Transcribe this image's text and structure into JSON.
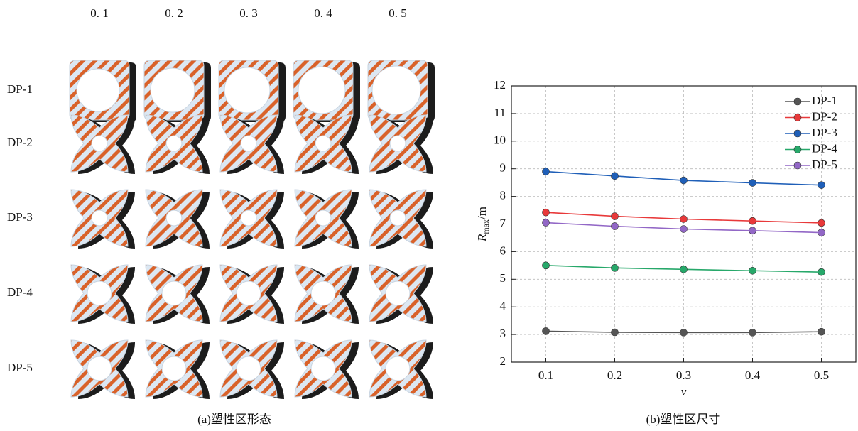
{
  "panel_a": {
    "column_labels": [
      "0. 1",
      "0. 2",
      "0. 3",
      "0. 4",
      "0. 5"
    ],
    "row_labels": [
      "DP-1",
      "DP-2",
      "DP-3",
      "DP-4",
      "DP-5"
    ],
    "caption": "(a)塑性区形态"
  },
  "chart_data": {
    "type": "line",
    "caption": "(b)塑性区尺寸",
    "xlabel": "v",
    "ylabel": {
      "symbol": "R",
      "subscript": "max",
      "unit": "/m"
    },
    "x": [
      0.1,
      0.2,
      0.3,
      0.4,
      0.5
    ],
    "xlim": [
      0.05,
      0.55
    ],
    "xticks": [
      0.1,
      0.2,
      0.3,
      0.4,
      0.5
    ],
    "ylim": [
      2,
      12
    ],
    "yticks": [
      2,
      3,
      4,
      5,
      6,
      7,
      8,
      9,
      10,
      11,
      12
    ],
    "grid": true,
    "legend": "top-right",
    "series": [
      {
        "name": "DP-1",
        "color": "#555555",
        "values": [
          3.12,
          3.08,
          3.07,
          3.07,
          3.1
        ]
      },
      {
        "name": "DP-2",
        "color": "#e8393a",
        "values": [
          7.42,
          7.28,
          7.18,
          7.11,
          7.04
        ]
      },
      {
        "name": "DP-3",
        "color": "#1f5fb8",
        "values": [
          8.9,
          8.74,
          8.58,
          8.49,
          8.41
        ]
      },
      {
        "name": "DP-4",
        "color": "#27a86a",
        "values": [
          5.5,
          5.41,
          5.36,
          5.31,
          5.26
        ]
      },
      {
        "name": "DP-5",
        "color": "#9267c6",
        "values": [
          7.05,
          6.92,
          6.82,
          6.76,
          6.69
        ]
      }
    ]
  }
}
